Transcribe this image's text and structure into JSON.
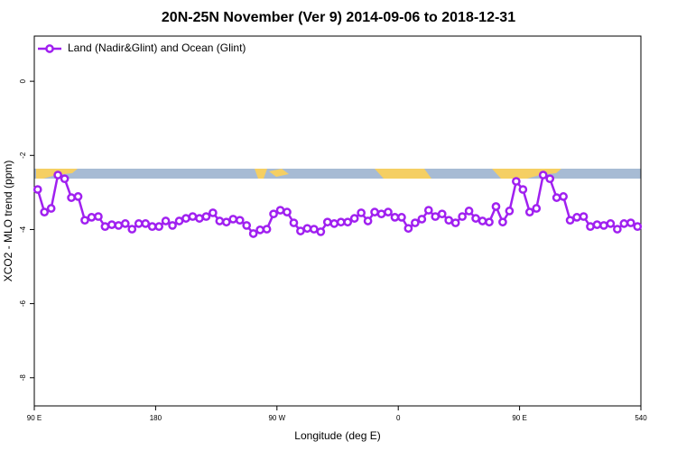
{
  "chart_data": {
    "type": "line",
    "title": "20N-25N November (Ver 9)   2014-09-06 to 2018-12-31",
    "x_label": "Longitude (deg E)",
    "y_label": "XCO2 - MLO trend (ppm)",
    "xlim": [
      90,
      540
    ],
    "ylim": [
      -8.76,
      1.22
    ],
    "xticks": [
      {
        "value": 90,
        "label": "90 E"
      },
      180,
      {
        "value": 270,
        "label": "90 W"
      },
      {
        "value": 360,
        "label": "0"
      },
      {
        "value": 450,
        "label": "90 E"
      },
      540
    ],
    "yticks": [
      0,
      -2,
      -4,
      -6,
      -8
    ],
    "legend": "top-left",
    "x": [
      92.5,
      97.5,
      102.5,
      107.5,
      112.5,
      117.5,
      122.5,
      127.5,
      132.5,
      137.5,
      142.5,
      147.5,
      152.5,
      157.5,
      162.5,
      167.5,
      172.5,
      177.5,
      182.5,
      187.5,
      192.5,
      197.5,
      202.5,
      207.5,
      212.5,
      217.5,
      222.5,
      227.5,
      232.5,
      237.5,
      242.5,
      247.5,
      252.5,
      257.5,
      262.5,
      267.5,
      272.5,
      277.5,
      282.5,
      287.5,
      292.5,
      297.5,
      302.5,
      307.5,
      312.5,
      317.5,
      322.5,
      327.5,
      332.5,
      337.5,
      342.5,
      347.5,
      352.5,
      357.5,
      362.5,
      367.5,
      372.5,
      377.5,
      382.5,
      387.5,
      392.5,
      397.5,
      402.5,
      407.5,
      412.5,
      417.5,
      422.5,
      427.5,
      432.5,
      437.5,
      442.5,
      447.5,
      452.5,
      457.5,
      462.5,
      467.5,
      472.5,
      477.5,
      482.5,
      487.5,
      492.5,
      497.5,
      502.5,
      507.5,
      512.5,
      517.5,
      522.5,
      527.5,
      532.5,
      537.5
    ],
    "series": [
      {
        "name": "Land (Nadir&Glint) and Ocean (Glint)",
        "color": "#a020f0",
        "values": [
          -2.92,
          -3.53,
          -3.43,
          -2.53,
          -2.63,
          -3.14,
          -3.11,
          -3.75,
          -3.67,
          -3.65,
          -3.92,
          -3.87,
          -3.89,
          -3.84,
          -3.99,
          -3.84,
          -3.84,
          -3.92,
          -3.92,
          -3.77,
          -3.89,
          -3.77,
          -3.7,
          -3.65,
          -3.7,
          -3.65,
          -3.55,
          -3.77,
          -3.8,
          -3.72,
          -3.75,
          -3.89,
          -4.11,
          -4.01,
          -3.99,
          -3.58,
          -3.48,
          -3.53,
          -3.82,
          -4.04,
          -3.97,
          -3.99,
          -4.06,
          -3.8,
          -3.84,
          -3.8,
          -3.8,
          -3.7,
          -3.55,
          -3.77,
          -3.53,
          -3.58,
          -3.53,
          -3.67,
          -3.67,
          -3.97,
          -3.82,
          -3.72,
          -3.48,
          -3.65,
          -3.58,
          -3.75,
          -3.82,
          -3.65,
          -3.5,
          -3.7,
          -3.77,
          -3.8,
          -3.38,
          -3.8,
          -3.5,
          -2.7,
          -2.92,
          -3.53,
          -3.43,
          -2.53,
          -2.63,
          -3.14,
          -3.11,
          -3.75,
          -3.67,
          -3.65,
          -3.92,
          -3.87,
          -3.89,
          -3.84,
          -3.99,
          -3.84,
          -3.82,
          -3.92
        ]
      }
    ]
  }
}
